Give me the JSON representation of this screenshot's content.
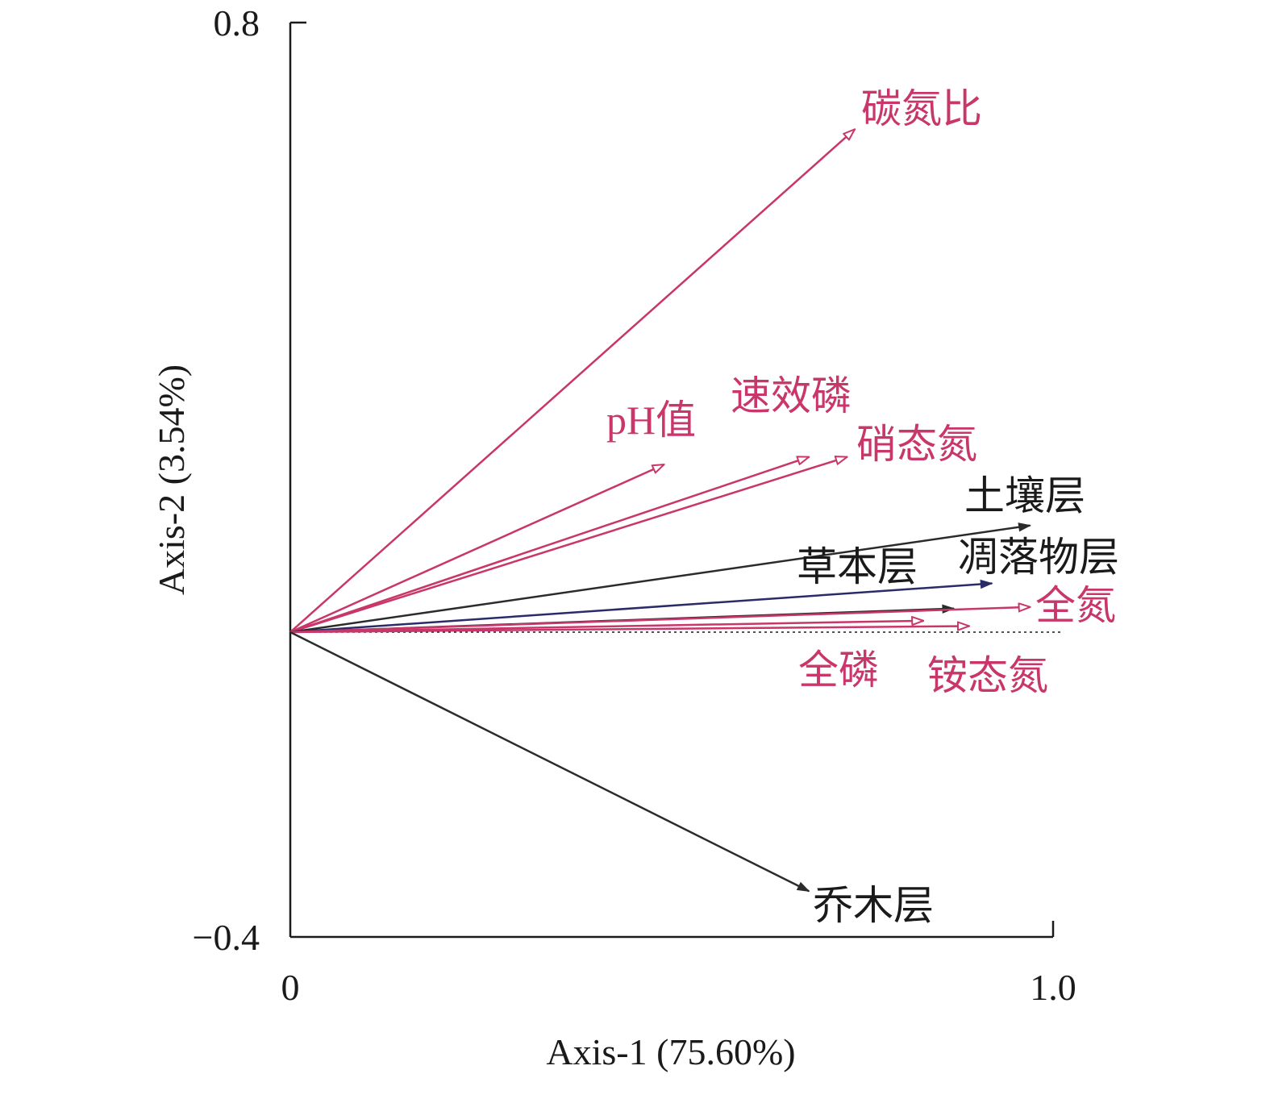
{
  "chart_data": {
    "type": "biplot",
    "xlabel": "Axis-1 (75.60%)",
    "ylabel": "Axis-2 (3.54%)",
    "xlim": [
      0,
      1.0
    ],
    "ylim": [
      -0.4,
      0.8
    ],
    "x_ticks": [
      "0",
      "1.0"
    ],
    "y_ticks": [
      "0.8",
      "−0.4"
    ],
    "grid": false,
    "reference_line": {
      "y": 0,
      "style": "dotted"
    },
    "colors": {
      "response": "#c8366a",
      "explanatory": "#2b2b2b",
      "litter": "#2b2b6a"
    },
    "vectors": [
      {
        "name": "碳氮比",
        "x": 0.74,
        "y": 0.66,
        "kind": "response"
      },
      {
        "name": "pH值",
        "x": 0.49,
        "y": 0.22,
        "kind": "response"
      },
      {
        "name": "速效磷",
        "x": 0.68,
        "y": 0.23,
        "kind": "response"
      },
      {
        "name": "硝态氮",
        "x": 0.73,
        "y": 0.23,
        "kind": "response"
      },
      {
        "name": "土壤层",
        "x": 0.97,
        "y": 0.14,
        "kind": "explanatory"
      },
      {
        "name": "凋落物层",
        "x": 0.92,
        "y": 0.064,
        "kind": "litter"
      },
      {
        "name": "草本层",
        "x": 0.87,
        "y": 0.031,
        "kind": "explanatory"
      },
      {
        "name": "全氮",
        "x": 0.97,
        "y": 0.033,
        "kind": "response"
      },
      {
        "name": "全磷",
        "x": 0.83,
        "y": 0.015,
        "kind": "response"
      },
      {
        "name": "铵态氮",
        "x": 0.89,
        "y": 0.008,
        "kind": "response"
      },
      {
        "name": "乔木层",
        "x": 0.68,
        "y": -0.34,
        "kind": "explanatory"
      }
    ]
  }
}
